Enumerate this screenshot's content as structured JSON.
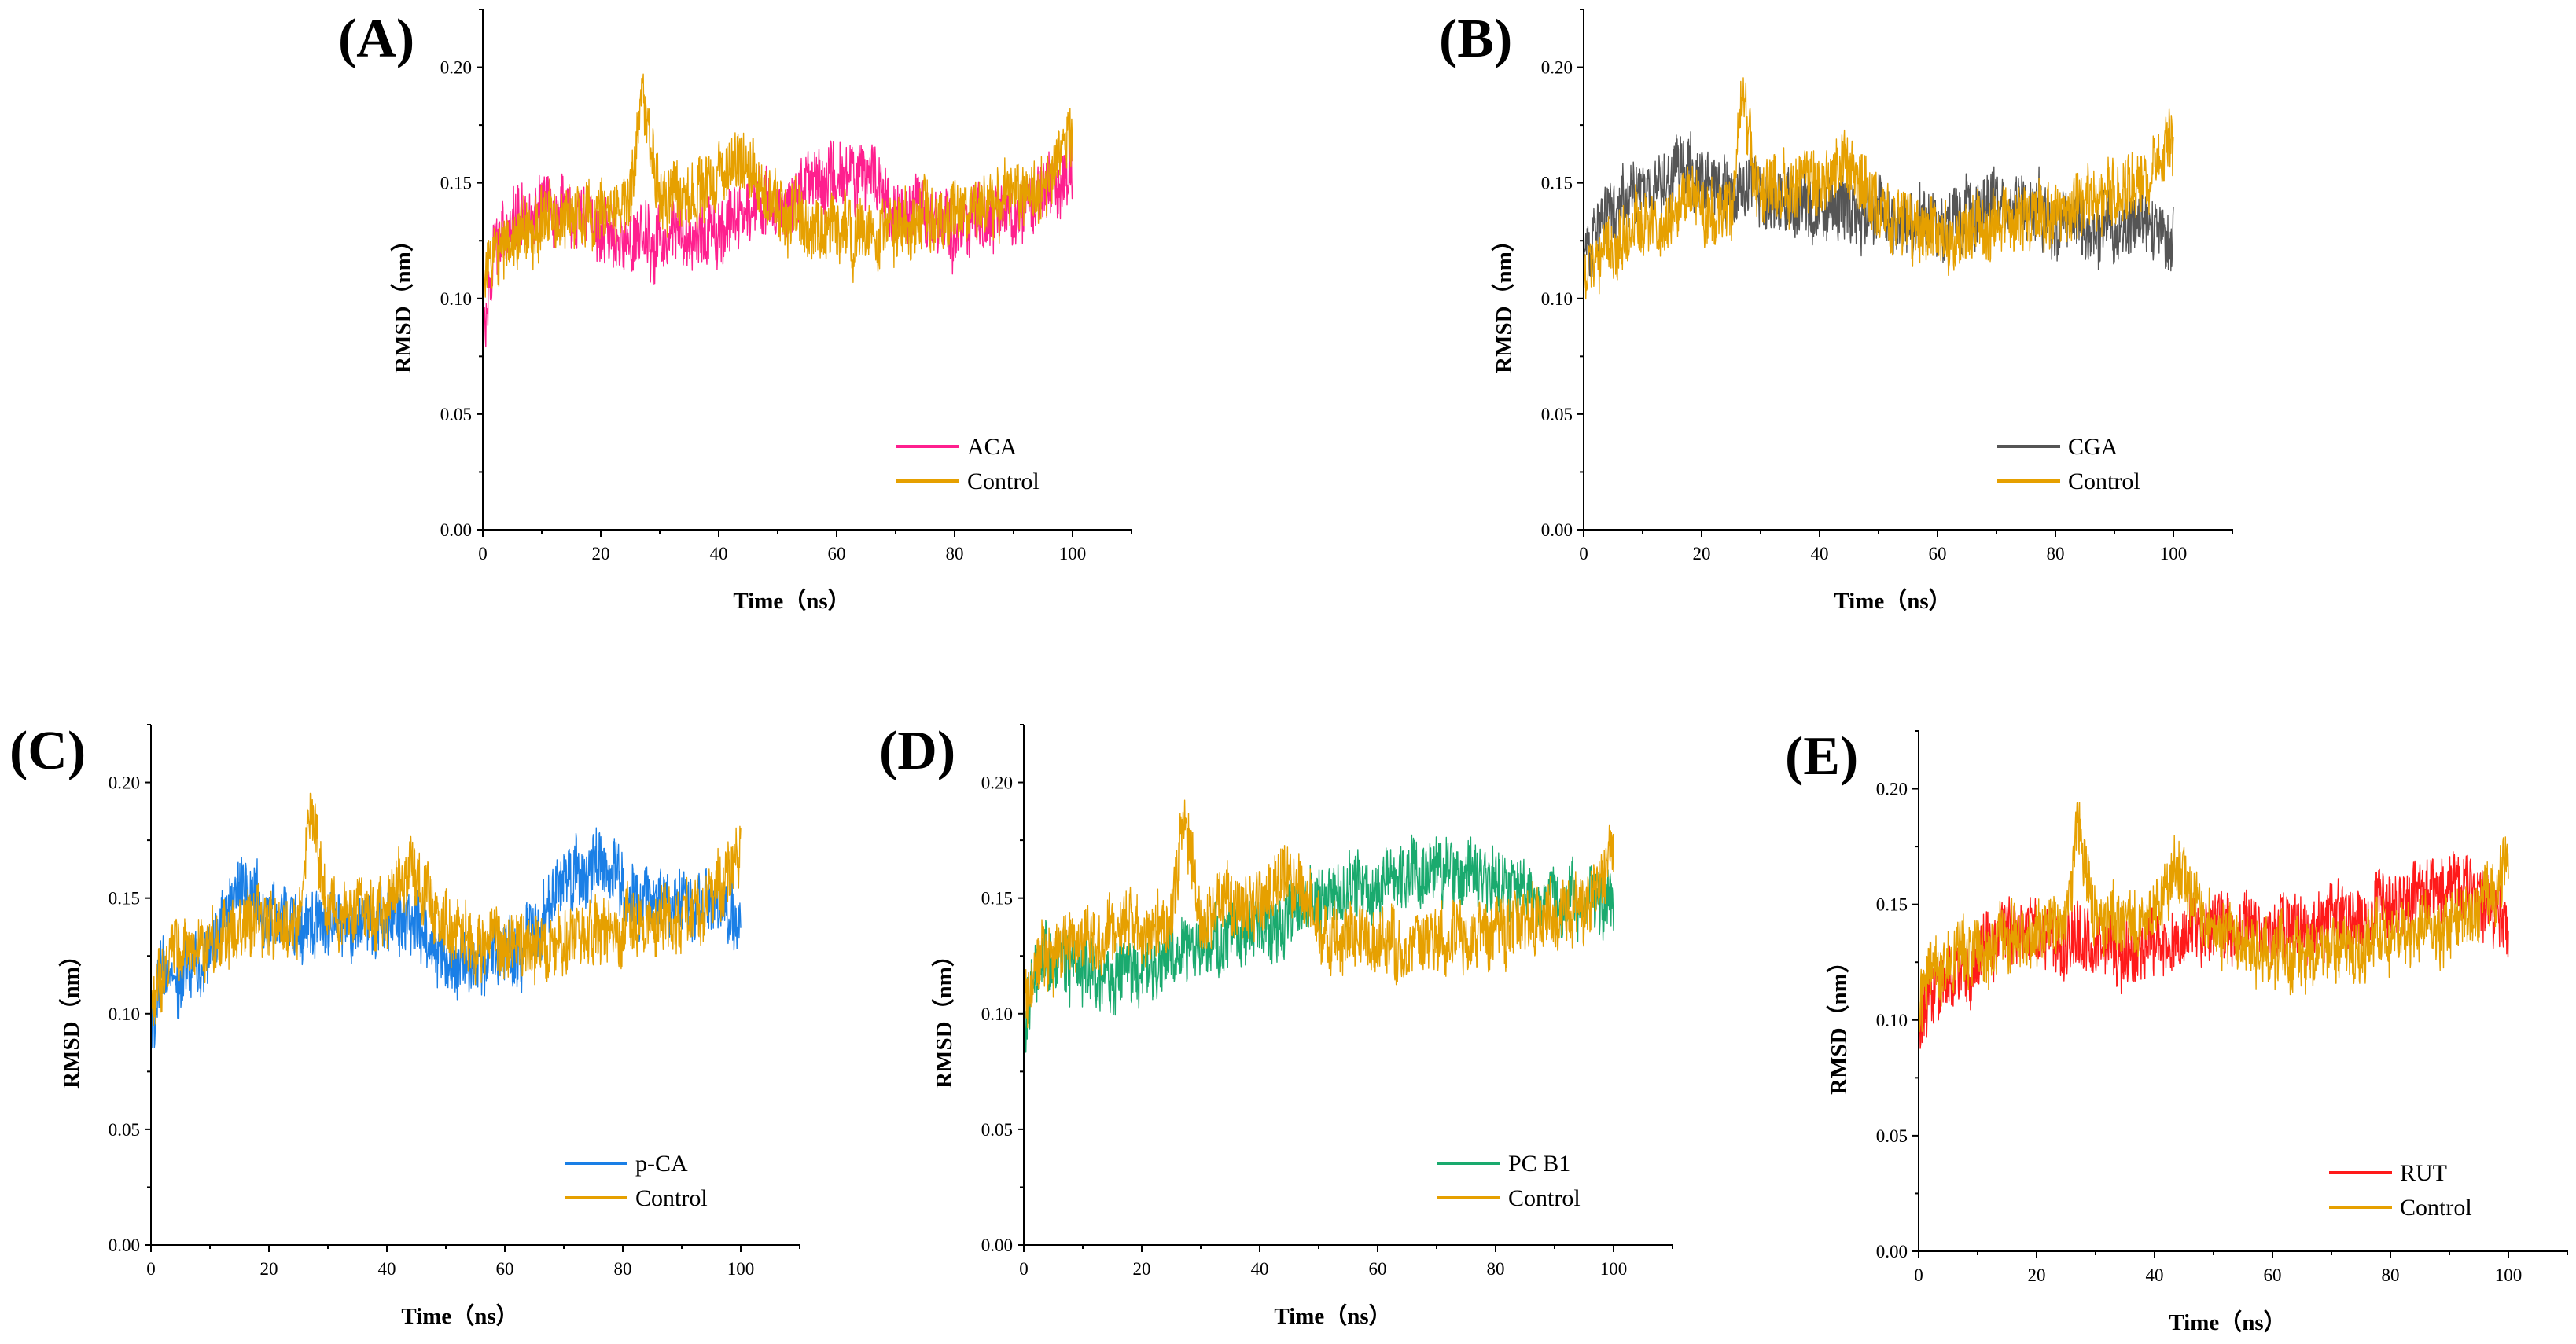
{
  "figure": {
    "panel_count": 5
  },
  "chart_data": [
    {
      "type": "line",
      "panel": "(A)",
      "xlabel": "Time（ns）",
      "ylabel": "RMSD（nm）",
      "xlim": [
        0,
        110
      ],
      "ylim": [
        0,
        0.225
      ],
      "x_ticks": [
        "0",
        "20",
        "40",
        "60",
        "80",
        "100"
      ],
      "y_ticks": [
        "0.00",
        "0.05",
        "0.10",
        "0.15",
        "0.20"
      ],
      "x_tick_values": [
        0,
        20,
        40,
        60,
        80,
        100
      ],
      "y_tick_values": [
        0,
        0.05,
        0.1,
        0.15,
        0.2
      ],
      "x": [
        0,
        2,
        5,
        10,
        15,
        20,
        25,
        27,
        30,
        35,
        40,
        44,
        50,
        55,
        60,
        64,
        70,
        75,
        80,
        85,
        90,
        95,
        100
      ],
      "series": [
        {
          "name": "ACA",
          "color": "#ff1f8e",
          "values": [
            0.085,
            0.125,
            0.135,
            0.14,
            0.138,
            0.13,
            0.127,
            0.126,
            0.124,
            0.126,
            0.13,
            0.138,
            0.143,
            0.148,
            0.152,
            0.155,
            0.142,
            0.136,
            0.133,
            0.135,
            0.138,
            0.142,
            0.155
          ]
        },
        {
          "name": "Control",
          "color": "#e6a000",
          "values": [
            0.105,
            0.118,
            0.125,
            0.132,
            0.136,
            0.138,
            0.14,
            0.188,
            0.142,
            0.145,
            0.148,
            0.162,
            0.138,
            0.132,
            0.13,
            0.128,
            0.13,
            0.133,
            0.136,
            0.14,
            0.143,
            0.148,
            0.17
          ]
        }
      ]
    },
    {
      "type": "line",
      "panel": "(B)",
      "xlabel": "Time（ns）",
      "ylabel": "RMSD（nm）",
      "xlim": [
        0,
        110
      ],
      "ylim": [
        0,
        0.225
      ],
      "x_ticks": [
        "0",
        "20",
        "40",
        "60",
        "80",
        "100"
      ],
      "y_ticks": [
        "0.00",
        "0.05",
        "0.10",
        "0.15",
        "0.20"
      ],
      "x_tick_values": [
        0,
        20,
        40,
        60,
        80,
        100
      ],
      "y_tick_values": [
        0,
        0.05,
        0.1,
        0.15,
        0.2
      ],
      "x": [
        0,
        2,
        5,
        10,
        15,
        20,
        25,
        27,
        30,
        35,
        40,
        44,
        50,
        55,
        60,
        64,
        70,
        75,
        80,
        85,
        90,
        95,
        100
      ],
      "series": [
        {
          "name": "CGA",
          "color": "#555555",
          "values": [
            0.115,
            0.13,
            0.14,
            0.148,
            0.155,
            0.15,
            0.146,
            0.148,
            0.145,
            0.142,
            0.14,
            0.138,
            0.136,
            0.134,
            0.135,
            0.137,
            0.14,
            0.138,
            0.136,
            0.133,
            0.132,
            0.13,
            0.128
          ]
        },
        {
          "name": "Control",
          "color": "#e6a000",
          "values": [
            0.105,
            0.118,
            0.125,
            0.132,
            0.136,
            0.138,
            0.14,
            0.188,
            0.142,
            0.145,
            0.148,
            0.162,
            0.138,
            0.132,
            0.13,
            0.128,
            0.13,
            0.133,
            0.136,
            0.14,
            0.143,
            0.148,
            0.17
          ]
        }
      ]
    },
    {
      "type": "line",
      "panel": "(C)",
      "xlabel": "Time（ns）",
      "ylabel": "RMSD（nm）",
      "xlim": [
        0,
        110
      ],
      "ylim": [
        0,
        0.225
      ],
      "x_ticks": [
        "0",
        "20",
        "40",
        "60",
        "80",
        "100"
      ],
      "y_ticks": [
        "0.00",
        "0.05",
        "0.10",
        "0.15",
        "0.20"
      ],
      "x_tick_values": [
        0,
        20,
        40,
        60,
        80,
        100
      ],
      "y_tick_values": [
        0,
        0.05,
        0.1,
        0.15,
        0.2
      ],
      "x": [
        0,
        2,
        5,
        10,
        15,
        20,
        25,
        27,
        30,
        35,
        40,
        44,
        50,
        55,
        60,
        64,
        70,
        75,
        80,
        85,
        90,
        95,
        100
      ],
      "series": [
        {
          "name": "p-CA",
          "color": "#1a7fe6",
          "values": [
            0.09,
            0.12,
            0.115,
            0.125,
            0.155,
            0.14,
            0.138,
            0.136,
            0.138,
            0.14,
            0.142,
            0.138,
            0.125,
            0.12,
            0.125,
            0.13,
            0.16,
            0.162,
            0.155,
            0.15,
            0.148,
            0.145,
            0.145
          ]
        },
        {
          "name": "Control",
          "color": "#e6a000",
          "values": [
            0.105,
            0.118,
            0.125,
            0.132,
            0.136,
            0.138,
            0.14,
            0.188,
            0.142,
            0.145,
            0.148,
            0.162,
            0.138,
            0.132,
            0.13,
            0.128,
            0.13,
            0.133,
            0.136,
            0.14,
            0.143,
            0.148,
            0.17
          ]
        }
      ]
    },
    {
      "type": "line",
      "panel": "(D)",
      "xlabel": "Time（ns）",
      "ylabel": "RMSD（nm）",
      "xlim": [
        0,
        110
      ],
      "ylim": [
        0,
        0.225
      ],
      "x_ticks": [
        "0",
        "20",
        "40",
        "60",
        "80",
        "100"
      ],
      "y_ticks": [
        "0.00",
        "0.05",
        "0.10",
        "0.15",
        "0.20"
      ],
      "x_tick_values": [
        0,
        20,
        40,
        60,
        80,
        100
      ],
      "y_tick_values": [
        0,
        0.05,
        0.1,
        0.15,
        0.2
      ],
      "x": [
        0,
        2,
        5,
        10,
        15,
        20,
        25,
        27,
        30,
        35,
        40,
        44,
        50,
        55,
        60,
        64,
        70,
        75,
        80,
        85,
        90,
        95,
        100
      ],
      "series": [
        {
          "name": "PC B1",
          "color": "#1aaa6e",
          "values": [
            0.095,
            0.12,
            0.125,
            0.118,
            0.115,
            0.12,
            0.125,
            0.128,
            0.13,
            0.135,
            0.138,
            0.14,
            0.15,
            0.152,
            0.155,
            0.158,
            0.162,
            0.16,
            0.155,
            0.152,
            0.15,
            0.148,
            0.145
          ]
        },
        {
          "name": "Control",
          "color": "#e6a000",
          "values": [
            0.105,
            0.118,
            0.125,
            0.132,
            0.136,
            0.138,
            0.14,
            0.188,
            0.142,
            0.145,
            0.148,
            0.162,
            0.138,
            0.132,
            0.13,
            0.128,
            0.13,
            0.133,
            0.136,
            0.14,
            0.143,
            0.148,
            0.17
          ]
        }
      ]
    },
    {
      "type": "line",
      "panel": "(E)",
      "xlabel": "Time（ns）",
      "ylabel": "RMSD（nm）",
      "xlim": [
        0,
        110
      ],
      "ylim": [
        0,
        0.225
      ],
      "x_ticks": [
        "0",
        "20",
        "40",
        "60",
        "80",
        "100"
      ],
      "y_ticks": [
        "0.00",
        "0.05",
        "0.10",
        "0.15",
        "0.20"
      ],
      "x_tick_values": [
        0,
        20,
        40,
        60,
        80,
        100
      ],
      "y_tick_values": [
        0,
        0.05,
        0.1,
        0.15,
        0.2
      ],
      "x": [
        0,
        2,
        5,
        10,
        15,
        20,
        25,
        27,
        30,
        35,
        40,
        44,
        50,
        55,
        60,
        64,
        70,
        75,
        80,
        85,
        90,
        95,
        100
      ],
      "series": [
        {
          "name": "RUT",
          "color": "#ff1a1a",
          "values": [
            0.095,
            0.11,
            0.118,
            0.125,
            0.14,
            0.135,
            0.13,
            0.138,
            0.132,
            0.128,
            0.13,
            0.135,
            0.142,
            0.14,
            0.138,
            0.14,
            0.142,
            0.145,
            0.15,
            0.155,
            0.158,
            0.155,
            0.14
          ]
        },
        {
          "name": "Control",
          "color": "#e6a000",
          "values": [
            0.105,
            0.118,
            0.125,
            0.132,
            0.136,
            0.138,
            0.14,
            0.188,
            0.142,
            0.145,
            0.148,
            0.162,
            0.138,
            0.132,
            0.13,
            0.128,
            0.13,
            0.133,
            0.136,
            0.14,
            0.143,
            0.148,
            0.17
          ]
        }
      ]
    }
  ]
}
